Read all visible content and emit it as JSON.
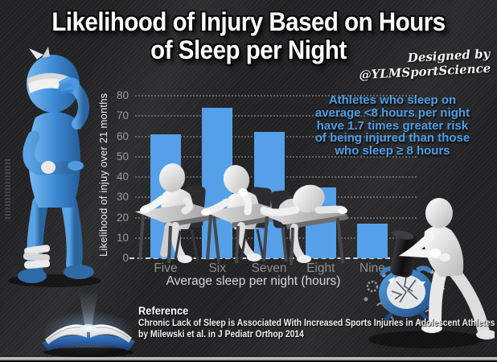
{
  "title": {
    "line1": "Likelihood of Injury Based on Hours",
    "line2": "of Sleep per Night"
  },
  "credit": {
    "line1": "Designed by",
    "line2": "@YLMSportScience"
  },
  "chart_data": {
    "type": "bar",
    "categories": [
      "Five",
      "Six",
      "Seven",
      "Eight",
      "Nine"
    ],
    "values": [
      61,
      74,
      62,
      35,
      17
    ],
    "title": "",
    "xlabel": "Average sleep per night (hours)",
    "ylabel": "Likelihood of injuy over 21 months",
    "ylim": [
      0,
      80
    ],
    "yticks": [
      0,
      10,
      20,
      30,
      40,
      50,
      60,
      70,
      80
    ],
    "grid": "dotted horizontal gridlines, dashed baseline",
    "legend": "none",
    "bar_color": "#55a0e8"
  },
  "callout": {
    "color": "#4c9fe8",
    "lines": [
      "Athletes who sleep on",
      "average <8 hours per night",
      "have 1.7 times greater risk",
      "of being injured than those",
      "who sleep ≥ 8 hours"
    ]
  },
  "reference": {
    "heading": "Reference",
    "line1": "Chronic Lack of Sleep is Associated With Increased Sports Injuries in Adolescent Athletes",
    "line2": "by Milewski et al. in J Pediatr Orthop 2014"
  },
  "illustrations": {
    "left": "injured blue figure with head, wrist and ankle bandages",
    "on_bars": "white figures asleep at school desks",
    "right": "white figure smashing blue alarm clock with sledgehammer",
    "bottom_left": "open glowing book"
  }
}
